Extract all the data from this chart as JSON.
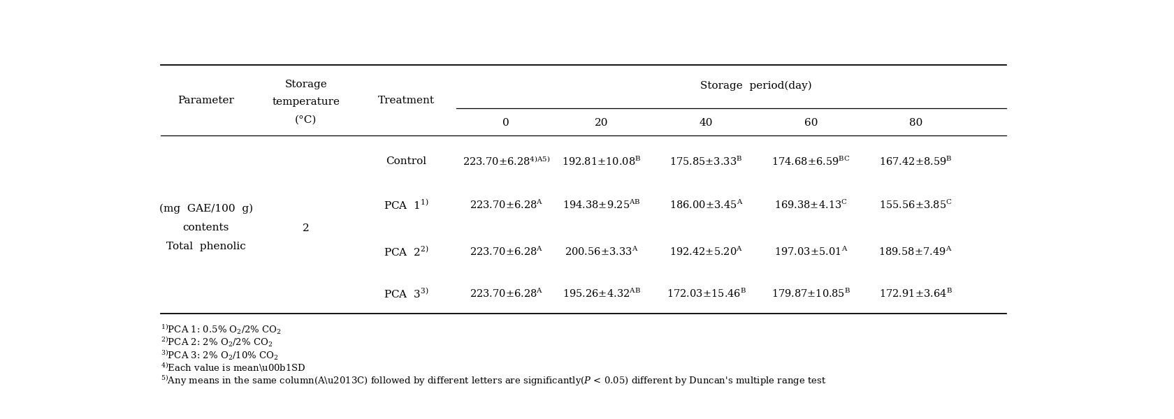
{
  "col_headers": {
    "param": "Parameter",
    "storage_temp_line1": "Storage",
    "storage_temp_line2": "temperature",
    "storage_temp_line3": "(°C)",
    "treatment": "Treatment",
    "period_label": "Storage  period(day)",
    "days": [
      "0",
      "20",
      "40",
      "60",
      "80"
    ]
  },
  "rows": [
    {
      "treatment": "Control",
      "values": [
        [
          "223.70±6.28",
          "4)A5)"
        ],
        [
          "192.81±10.08",
          "B"
        ],
        [
          "175.85±3.33",
          "B"
        ],
        [
          "174.68±6.59",
          "BC"
        ],
        [
          "167.42±8.59",
          "B"
        ]
      ]
    },
    {
      "treatment": "PCA  1",
      "treatment_sup": "1)",
      "values": [
        [
          "223.70±6.28",
          "A"
        ],
        [
          "194.38±9.25",
          "AB"
        ],
        [
          "186.00±3.45",
          "A"
        ],
        [
          "169.38±4.13",
          "C"
        ],
        [
          "155.56±3.85",
          "C"
        ]
      ]
    },
    {
      "treatment": "PCA  2",
      "treatment_sup": "2)",
      "values": [
        [
          "223.70±6.28",
          "A"
        ],
        [
          "200.56±3.33",
          "A"
        ],
        [
          "192.42±5.20",
          "A"
        ],
        [
          "197.03±5.01",
          "A"
        ],
        [
          "189.58±7.49",
          "A"
        ]
      ]
    },
    {
      "treatment": "PCA  3",
      "treatment_sup": "3)",
      "values": [
        [
          "223.70±6.28",
          "A"
        ],
        [
          "195.26±4.32",
          "AB"
        ],
        [
          "172.03±15.46",
          "B"
        ],
        [
          "179.87±10.85",
          "B"
        ],
        [
          "172.91±3.64",
          "B"
        ]
      ]
    }
  ],
  "param_label_lines": [
    "Total  phenolic",
    "contents",
    "(mg  GAE/100  g)"
  ],
  "storage_temp_value": "2",
  "footnotes": [
    [
      "1)",
      "PCA 1: 0.5% O$_2$/2% CO$_2$"
    ],
    [
      "2)",
      "PCA 2: 2% O$_2$/2% CO$_2$"
    ],
    [
      "3)",
      "PCA 3: 2% O$_2$/10% CO$_2$"
    ],
    [
      "4)",
      "Each value is mean±SD"
    ],
    [
      "5)",
      "Any means in the same column(A–C) followed by different letters are significantly(ϰ < 0.05) different by Duncan's multiple range test"
    ]
  ],
  "bg_color": "#ffffff",
  "text_color": "#000000",
  "line_color": "#000000",
  "font_size": 11.0,
  "footnote_size": 9.5
}
